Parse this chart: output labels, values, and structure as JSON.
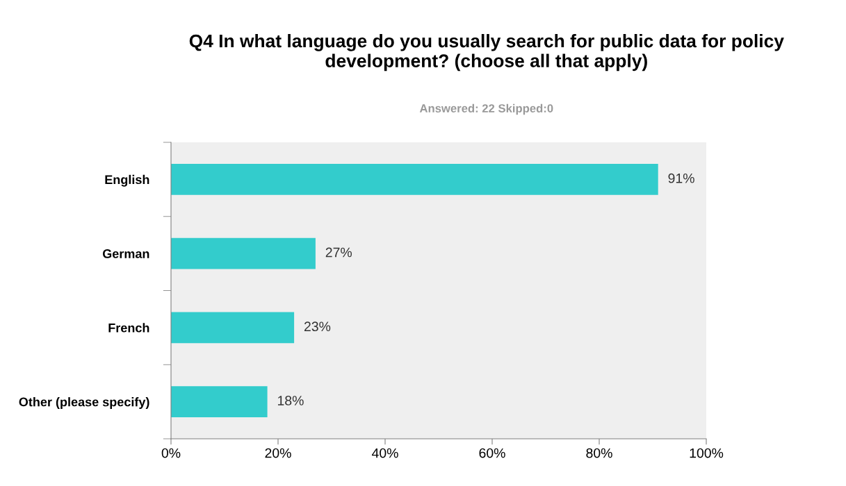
{
  "chart_data": {
    "type": "bar",
    "orientation": "horizontal",
    "title": "Q4 In what language do you usually search for public data for policy development? (choose all that apply)",
    "subtitle": "Answered: 22 Skipped:0",
    "categories": [
      "English",
      "German",
      "French",
      "Other (please specify)"
    ],
    "values": [
      91,
      27,
      23,
      18
    ],
    "value_labels": [
      "91%",
      "27%",
      "23%",
      "18%"
    ],
    "color": "#33cccc",
    "xlim": [
      0,
      100
    ],
    "xticks": [
      {
        "value": 0,
        "label": "0%"
      },
      {
        "value": 20,
        "label": "20%"
      },
      {
        "value": 40,
        "label": "40%"
      },
      {
        "value": 60,
        "label": "60%"
      },
      {
        "value": 80,
        "label": "80%"
      },
      {
        "value": 100,
        "label": "100%"
      }
    ],
    "grid": false,
    "legend": false
  }
}
